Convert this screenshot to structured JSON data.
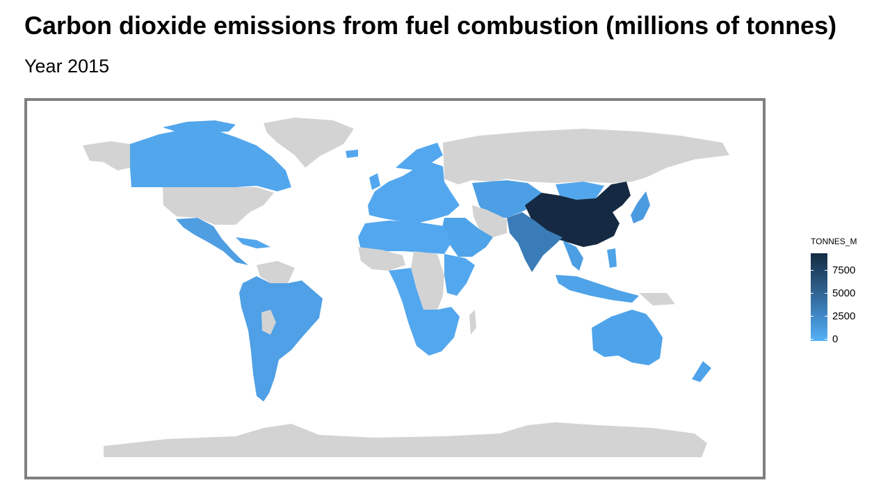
{
  "title": "Carbon dioxide emissions from fuel combustion (millions of tonnes)",
  "subtitle": "Year 2015",
  "legend": {
    "title": "TONNES_M",
    "scale_min": 0,
    "scale_max": 9500,
    "low_color": "#56b1f7",
    "high_color": "#132b43",
    "ticks": [
      "7500",
      "5000",
      "2500",
      "0"
    ]
  },
  "colors": {
    "no_data": "#d3d3d3",
    "frame_border": "#808080",
    "highest": "#152a42",
    "high": "#3a7cb8",
    "mid": "#4999d6",
    "low": "#55a8ec"
  },
  "map_data": {
    "type": "choropleth",
    "variable": "TONNES_M",
    "regions": [
      {
        "name": "China",
        "value": 9000
      },
      {
        "name": "India",
        "value": 2000
      },
      {
        "name": "Japan",
        "value": 1150
      },
      {
        "name": "Canada",
        "value": 550
      },
      {
        "name": "Brazil",
        "value": 450
      },
      {
        "name": "Australia",
        "value": 380
      },
      {
        "name": "Mexico",
        "value": 440
      },
      {
        "name": "Indonesia",
        "value": 450
      },
      {
        "name": "Saudi Arabia",
        "value": 530
      },
      {
        "name": "Kazakhstan",
        "value": 230
      }
    ]
  }
}
